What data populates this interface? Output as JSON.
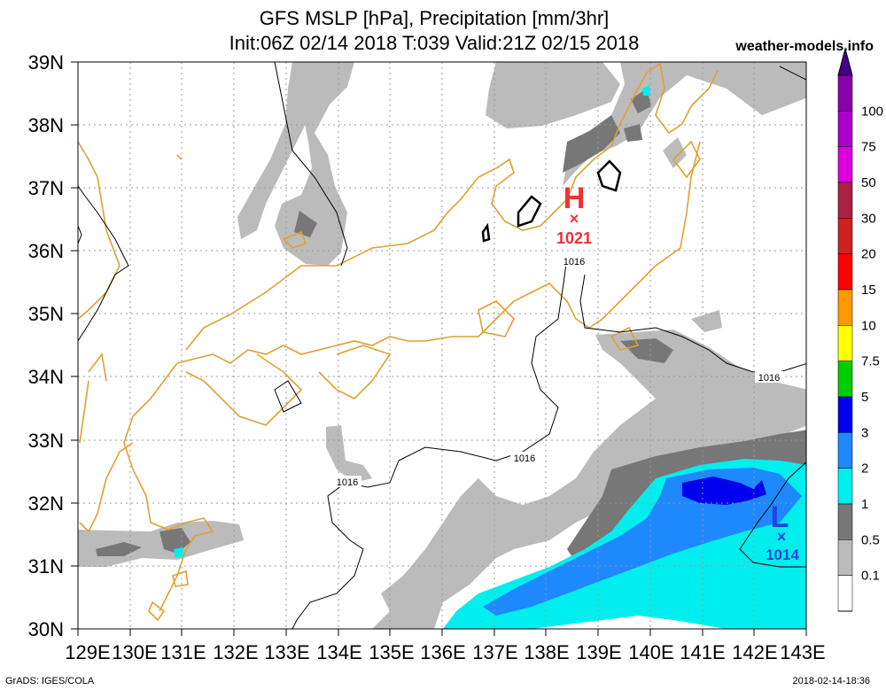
{
  "header": {
    "title_line1": "GFS MSLP [hPa], Precipitation [mm/3hr]",
    "title_line2": "Init:06Z 02/14 2018 T:039 Valid:21Z 02/15 2018",
    "site": "weather-models.info"
  },
  "footer": {
    "credit": "GrADS: IGES/COLA",
    "timestamp": "2018-02-14-18:36"
  },
  "map": {
    "lon_labels": [
      "129E",
      "130E",
      "131E",
      "132E",
      "133E",
      "134E",
      "135E",
      "136E",
      "137E",
      "138E",
      "139E",
      "140E",
      "141E",
      "142E",
      "143E"
    ],
    "lat_labels": [
      "39N",
      "38N",
      "37N",
      "36N",
      "35N",
      "34N",
      "33N",
      "32N",
      "31N",
      "30N"
    ],
    "coast_color": "#e0a030",
    "isobar_labels": [
      "1016",
      "1016",
      "1016",
      "1016"
    ],
    "high": {
      "letter": "H",
      "value": "1021",
      "color": "#ee3333"
    },
    "low": {
      "letter": "L",
      "value": "1014",
      "color": "#2244dd"
    }
  },
  "colorbar": {
    "labels": [
      "100",
      "75",
      "50",
      "30",
      "20",
      "15",
      "10",
      "7.5",
      "5",
      "3",
      "2",
      "1",
      "0.5",
      "0.1"
    ],
    "colors": [
      "#8800aa",
      "#aa00cc",
      "#dd00dd",
      "#aa2244",
      "#cc2222",
      "#ff0000",
      "#ff9900",
      "#ffff00",
      "#00cc00",
      "#0000ee",
      "#1e88ff",
      "#00eeee",
      "#777777",
      "#bbbbbb",
      "#ffffff"
    ]
  }
}
